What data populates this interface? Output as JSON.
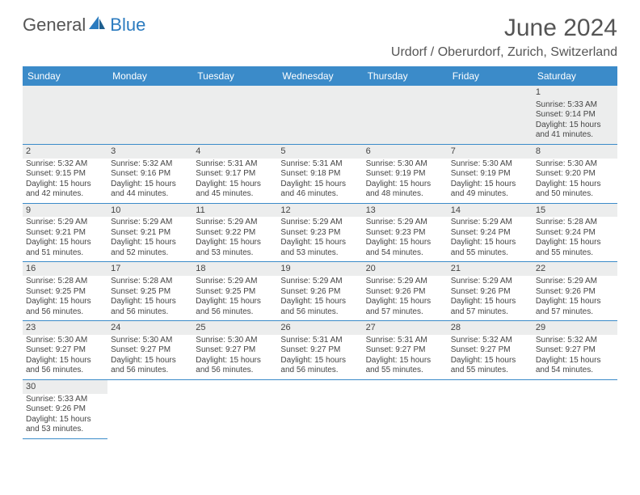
{
  "colors": {
    "header_bg": "#3b8bc9",
    "header_text": "#ffffff",
    "daynum_bg": "#eceded",
    "border": "#3b8bc9",
    "logo_gray": "#555555",
    "logo_blue": "#2b7bbf"
  },
  "logo": {
    "part1": "General",
    "part2": "Blue"
  },
  "title": "June 2024",
  "location": "Urdorf / Oberurdorf, Zurich, Switzerland",
  "weekdays": [
    "Sunday",
    "Monday",
    "Tuesday",
    "Wednesday",
    "Thursday",
    "Friday",
    "Saturday"
  ],
  "layout": {
    "cols": 7,
    "leading_blanks": 6,
    "days_in_month": 30
  },
  "days": {
    "1": {
      "sunrise": "5:33 AM",
      "sunset": "9:14 PM",
      "daylight": "15 hours and 41 minutes."
    },
    "2": {
      "sunrise": "5:32 AM",
      "sunset": "9:15 PM",
      "daylight": "15 hours and 42 minutes."
    },
    "3": {
      "sunrise": "5:32 AM",
      "sunset": "9:16 PM",
      "daylight": "15 hours and 44 minutes."
    },
    "4": {
      "sunrise": "5:31 AM",
      "sunset": "9:17 PM",
      "daylight": "15 hours and 45 minutes."
    },
    "5": {
      "sunrise": "5:31 AM",
      "sunset": "9:18 PM",
      "daylight": "15 hours and 46 minutes."
    },
    "6": {
      "sunrise": "5:30 AM",
      "sunset": "9:19 PM",
      "daylight": "15 hours and 48 minutes."
    },
    "7": {
      "sunrise": "5:30 AM",
      "sunset": "9:19 PM",
      "daylight": "15 hours and 49 minutes."
    },
    "8": {
      "sunrise": "5:30 AM",
      "sunset": "9:20 PM",
      "daylight": "15 hours and 50 minutes."
    },
    "9": {
      "sunrise": "5:29 AM",
      "sunset": "9:21 PM",
      "daylight": "15 hours and 51 minutes."
    },
    "10": {
      "sunrise": "5:29 AM",
      "sunset": "9:21 PM",
      "daylight": "15 hours and 52 minutes."
    },
    "11": {
      "sunrise": "5:29 AM",
      "sunset": "9:22 PM",
      "daylight": "15 hours and 53 minutes."
    },
    "12": {
      "sunrise": "5:29 AM",
      "sunset": "9:23 PM",
      "daylight": "15 hours and 53 minutes."
    },
    "13": {
      "sunrise": "5:29 AM",
      "sunset": "9:23 PM",
      "daylight": "15 hours and 54 minutes."
    },
    "14": {
      "sunrise": "5:29 AM",
      "sunset": "9:24 PM",
      "daylight": "15 hours and 55 minutes."
    },
    "15": {
      "sunrise": "5:28 AM",
      "sunset": "9:24 PM",
      "daylight": "15 hours and 55 minutes."
    },
    "16": {
      "sunrise": "5:28 AM",
      "sunset": "9:25 PM",
      "daylight": "15 hours and 56 minutes."
    },
    "17": {
      "sunrise": "5:28 AM",
      "sunset": "9:25 PM",
      "daylight": "15 hours and 56 minutes."
    },
    "18": {
      "sunrise": "5:29 AM",
      "sunset": "9:25 PM",
      "daylight": "15 hours and 56 minutes."
    },
    "19": {
      "sunrise": "5:29 AM",
      "sunset": "9:26 PM",
      "daylight": "15 hours and 56 minutes."
    },
    "20": {
      "sunrise": "5:29 AM",
      "sunset": "9:26 PM",
      "daylight": "15 hours and 57 minutes."
    },
    "21": {
      "sunrise": "5:29 AM",
      "sunset": "9:26 PM",
      "daylight": "15 hours and 57 minutes."
    },
    "22": {
      "sunrise": "5:29 AM",
      "sunset": "9:26 PM",
      "daylight": "15 hours and 57 minutes."
    },
    "23": {
      "sunrise": "5:30 AM",
      "sunset": "9:27 PM",
      "daylight": "15 hours and 56 minutes."
    },
    "24": {
      "sunrise": "5:30 AM",
      "sunset": "9:27 PM",
      "daylight": "15 hours and 56 minutes."
    },
    "25": {
      "sunrise": "5:30 AM",
      "sunset": "9:27 PM",
      "daylight": "15 hours and 56 minutes."
    },
    "26": {
      "sunrise": "5:31 AM",
      "sunset": "9:27 PM",
      "daylight": "15 hours and 56 minutes."
    },
    "27": {
      "sunrise": "5:31 AM",
      "sunset": "9:27 PM",
      "daylight": "15 hours and 55 minutes."
    },
    "28": {
      "sunrise": "5:32 AM",
      "sunset": "9:27 PM",
      "daylight": "15 hours and 55 minutes."
    },
    "29": {
      "sunrise": "5:32 AM",
      "sunset": "9:27 PM",
      "daylight": "15 hours and 54 minutes."
    },
    "30": {
      "sunrise": "5:33 AM",
      "sunset": "9:26 PM",
      "daylight": "15 hours and 53 minutes."
    }
  },
  "labels": {
    "sunrise": "Sunrise:",
    "sunset": "Sunset:",
    "daylight": "Daylight:"
  },
  "typography": {
    "title_fontsize": 30,
    "location_fontsize": 16,
    "header_fontsize": 12,
    "cell_fontsize": 10
  }
}
